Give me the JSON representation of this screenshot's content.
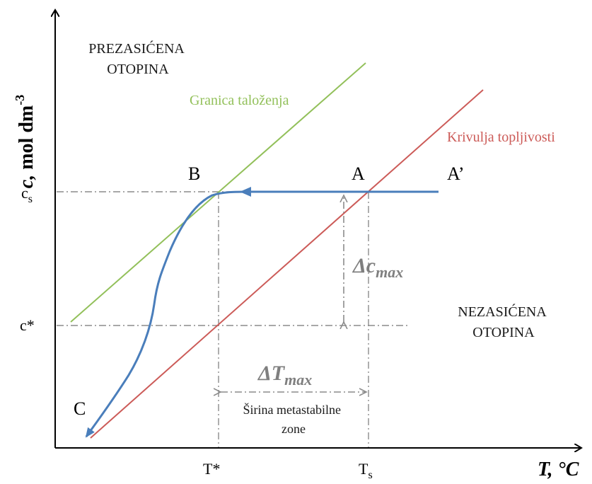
{
  "axes": {
    "y_title_var": "c,",
    "y_title_unit": "mol dm",
    "y_title_exp": "-3",
    "x_title": "T, °C"
  },
  "ticks": {
    "cs": "c",
    "cs_sub": "s",
    "cstar": "c*",
    "tstar": "T*",
    "ts": "T",
    "ts_sub": "s"
  },
  "regions": {
    "supersaturated_line1": "PREZASIĆENA",
    "supersaturated_line2": "OTOPINA",
    "unsaturated_line1": "NEZASIĆENA",
    "unsaturated_line2": "OTOPINA"
  },
  "curves": {
    "precipitation": "Granica taloženja",
    "solubility": "Krivulja topljivosti"
  },
  "points": {
    "a": "A",
    "a_prime": "A’",
    "b": "B",
    "c": "C"
  },
  "annotations": {
    "delta_c_prefix": "Δc",
    "delta_c_sub": "max",
    "delta_t_prefix": "ΔT",
    "delta_t_sub": "max",
    "width_line1": "Širina metastabilne",
    "width_line2": "zone"
  },
  "colors": {
    "precipitation": "#92c05a",
    "solubility": "#cc5b58",
    "process": "#4a7ebb",
    "guides": "#8c8c8c",
    "annotation": "#7f7f7f"
  }
}
